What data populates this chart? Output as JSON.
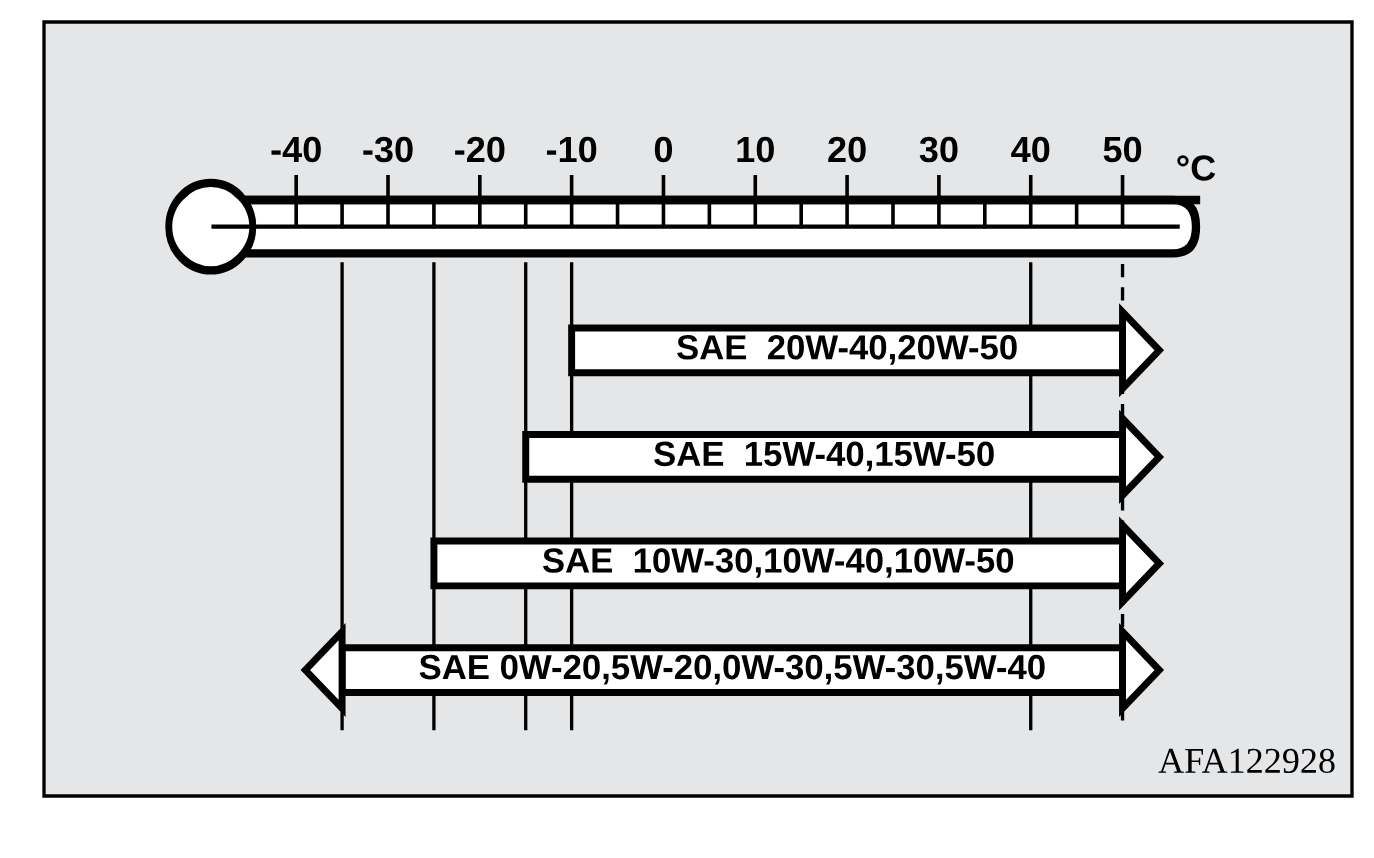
{
  "chart_data": {
    "type": "bar",
    "orientation": "horizontal",
    "categories": [
      "SAE  20W-40,20W-50",
      "SAE  15W-40,15W-50",
      "SAE  10W-30,10W-40,10W-50",
      "SAE 0W-20,5W-20,0W-30,5W-30,5W-40"
    ],
    "base": [
      -10,
      -15,
      -25,
      -35
    ],
    "values": [
      60,
      65,
      75,
      85
    ],
    "color": "#ffffff",
    "xlabel": "°C",
    "xlim": [
      -52,
      58
    ],
    "xticks": [
      -40,
      -30,
      -20,
      -10,
      0,
      10,
      20,
      30,
      40,
      50
    ],
    "tick_labels": "x",
    "ref_lines": [
      {
        "axis": "x",
        "value": -35,
        "color": "#000000"
      },
      {
        "axis": "x",
        "value": -25,
        "color": "#000000"
      },
      {
        "axis": "x",
        "value": -15,
        "color": "#000000"
      },
      {
        "axis": "x",
        "value": -10,
        "color": "#000000"
      },
      {
        "axis": "x",
        "value": 40,
        "color": "#000000"
      },
      {
        "axis": "x",
        "value": 50,
        "color": "#000000",
        "line_style": "dashed"
      }
    ],
    "annotations": [
      "AFA122928"
    ]
  }
}
